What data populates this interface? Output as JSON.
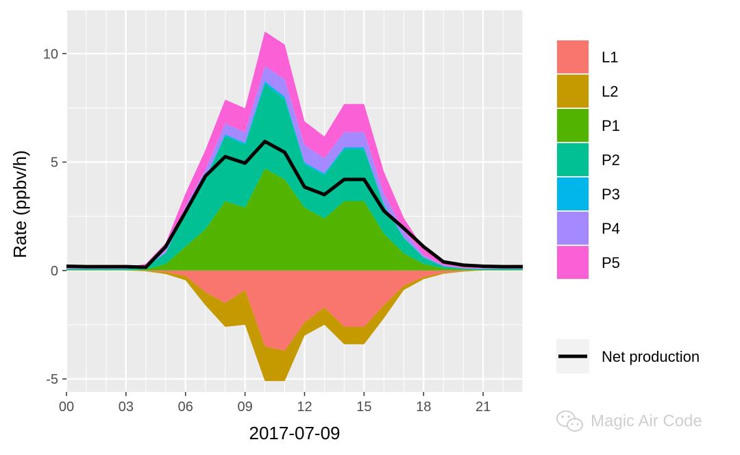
{
  "chart_data": {
    "type": "area",
    "title": "",
    "xlabel": "2017-07-09",
    "ylabel": "Rate (ppbv/h)",
    "xlim": [
      0,
      23
    ],
    "ylim": [
      -5.6,
      12.0
    ],
    "x": [
      0,
      1,
      2,
      3,
      4,
      5,
      6,
      7,
      8,
      9,
      10,
      11,
      12,
      13,
      14,
      15,
      16,
      17,
      18,
      19,
      20,
      21,
      22,
      23
    ],
    "x_ticks": [
      0,
      3,
      6,
      9,
      12,
      15,
      18,
      21
    ],
    "x_tick_labels": [
      "00",
      "03",
      "06",
      "09",
      "12",
      "15",
      "18",
      "21"
    ],
    "y_ticks": [
      -5,
      0,
      5,
      10
    ],
    "y_tick_labels": [
      "-5",
      "0",
      "5",
      "10"
    ],
    "grid": true,
    "stacking": "positive series stacked upward from 0, negative series stacked downward from 0",
    "series": [
      {
        "name": "L1",
        "color": "#F8766D",
        "values": [
          0,
          0,
          0,
          0,
          -0.02,
          -0.08,
          -0.25,
          -1.0,
          -1.5,
          -0.9,
          -3.5,
          -3.7,
          -2.4,
          -1.7,
          -2.6,
          -2.6,
          -1.6,
          -0.7,
          -0.3,
          -0.1,
          -0.03,
          0,
          0,
          0
        ]
      },
      {
        "name": "L2",
        "color": "#C49A00",
        "values": [
          0,
          0,
          0,
          0,
          -0.02,
          -0.08,
          -0.2,
          -0.6,
          -1.1,
          -1.6,
          -1.6,
          -1.4,
          -0.6,
          -0.8,
          -0.8,
          -0.8,
          -0.6,
          -0.2,
          -0.1,
          -0.05,
          -0.02,
          0,
          0,
          0
        ]
      },
      {
        "name": "P1",
        "color": "#53B400",
        "values": [
          0.02,
          0.02,
          0.02,
          0.02,
          0.05,
          0.3,
          1.1,
          1.9,
          3.2,
          2.9,
          4.7,
          4.2,
          2.9,
          2.4,
          3.2,
          3.2,
          1.7,
          0.8,
          0.3,
          0.1,
          0.05,
          0.02,
          0.02,
          0.02
        ]
      },
      {
        "name": "P2",
        "color": "#00C094",
        "values": [
          0.05,
          0.05,
          0.05,
          0.05,
          0.1,
          0.5,
          1.6,
          2.3,
          3.0,
          2.9,
          3.9,
          3.7,
          2.0,
          2.0,
          2.4,
          2.4,
          1.3,
          0.7,
          0.3,
          0.1,
          0.05,
          0.05,
          0.05,
          0.05
        ]
      },
      {
        "name": "P3",
        "color": "#00B6EB",
        "values": [
          0,
          0,
          0,
          0,
          0.01,
          0.02,
          0.05,
          0.05,
          0.08,
          0.08,
          0.12,
          0.12,
          0.08,
          0.08,
          0.08,
          0.08,
          0.05,
          0.03,
          0.01,
          0,
          0,
          0,
          0,
          0
        ]
      },
      {
        "name": "P4",
        "color": "#A58AFF",
        "values": [
          0.02,
          0.02,
          0.02,
          0.02,
          0.05,
          0.1,
          0.2,
          0.4,
          0.5,
          0.5,
          0.7,
          0.8,
          0.8,
          0.7,
          0.7,
          0.7,
          0.5,
          0.3,
          0.1,
          0.05,
          0.02,
          0.02,
          0.02,
          0.02
        ]
      },
      {
        "name": "P5",
        "color": "#FB61D7",
        "values": [
          0.05,
          0.05,
          0.05,
          0.05,
          0.1,
          0.35,
          0.6,
          0.9,
          1.1,
          1.1,
          1.6,
          1.6,
          1.1,
          1.0,
          1.3,
          1.3,
          1.0,
          0.6,
          0.3,
          0.1,
          0.05,
          0.05,
          0.05,
          0.05
        ]
      }
    ],
    "line_series": {
      "name": "Net production",
      "color": "#000000",
      "values": [
        0.2,
        0.18,
        0.18,
        0.18,
        0.15,
        1.1,
        2.7,
        4.35,
        5.25,
        4.95,
        5.95,
        5.45,
        3.85,
        3.5,
        4.2,
        4.2,
        2.75,
        1.95,
        1.1,
        0.4,
        0.25,
        0.2,
        0.18,
        0.18
      ]
    },
    "legend": {
      "placement": "right",
      "fill_entries": [
        "L1",
        "L2",
        "P1",
        "P2",
        "P3",
        "P4",
        "P5"
      ],
      "line_entry": "Net production"
    }
  },
  "watermark": {
    "text": "Magic Air Code",
    "icon": "wechat-icon"
  },
  "colors": {
    "panel_background": "#EBEBEB",
    "grid_major": "#FFFFFF",
    "legend_key_background": "#F2F2F2"
  }
}
